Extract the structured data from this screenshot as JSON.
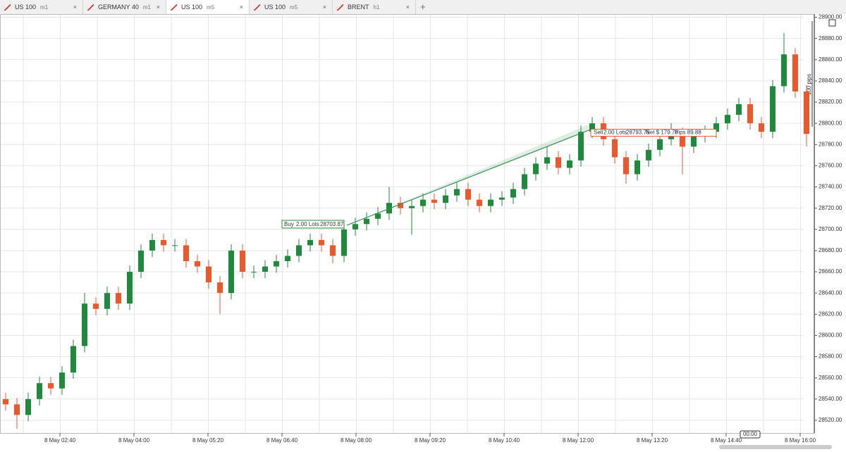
{
  "tabs": [
    {
      "symbol": "US 100",
      "timeframe": "m1"
    },
    {
      "symbol": "GERMANY 40",
      "timeframe": "m1"
    },
    {
      "symbol": "US 100",
      "timeframe": "m5"
    },
    {
      "symbol": "US 100",
      "timeframe": "m5"
    },
    {
      "symbol": "BRENT",
      "timeframe": "h1"
    }
  ],
  "chart_data": {
    "type": "candlestick",
    "up_color": "#1f8a3b",
    "down_color": "#e9592c",
    "open": [
      28540,
      28535,
      28525,
      28540,
      28555,
      28550,
      28565,
      28590,
      28630,
      28625,
      28640,
      28630,
      28660,
      28680,
      28690,
      28685,
      28685,
      28670,
      28665,
      28650,
      28640,
      28680,
      28660,
      28660,
      28665,
      28670,
      28675,
      28685,
      28690,
      28685,
      28675,
      28700,
      28705,
      28710,
      28715,
      28725,
      28720,
      28722,
      28728,
      28725,
      28732,
      28738,
      28728,
      28722,
      28728,
      28730,
      28738,
      28752,
      28762,
      28768,
      28758,
      28765,
      28792,
      28800,
      28785,
      28768,
      28752,
      28765,
      28775,
      28785,
      28790,
      28778,
      28788,
      28792,
      28800,
      28808,
      28818,
      28800,
      28792,
      28835,
      28865,
      28830
    ],
    "high": [
      28546,
      28541,
      28546,
      28561,
      28561,
      28571,
      28596,
      28640,
      28636,
      28646,
      28646,
      28666,
      28686,
      28696,
      28696,
      28691,
      28691,
      28676,
      28671,
      28656,
      28686,
      28686,
      28666,
      28671,
      28676,
      28681,
      28691,
      28696,
      28696,
      28691,
      28706,
      28711,
      28716,
      28721,
      28740,
      28731,
      28728,
      28734,
      28734,
      28738,
      28744,
      28744,
      28734,
      28734,
      28736,
      28744,
      28758,
      28768,
      28778,
      28774,
      28771,
      28798,
      28806,
      28806,
      28791,
      28774,
      28771,
      28781,
      28791,
      28800,
      28796,
      28794,
      28798,
      28806,
      28814,
      28824,
      28824,
      28806,
      28841,
      28885,
      28871,
      28836
    ],
    "low": [
      28529,
      28512,
      28519,
      28534,
      28544,
      28544,
      28559,
      28584,
      28619,
      28619,
      28624,
      28624,
      28654,
      28674,
      28679,
      28679,
      28664,
      28659,
      28644,
      28620,
      28634,
      28654,
      28654,
      28654,
      28659,
      28664,
      28669,
      28679,
      28679,
      28668,
      28669,
      28694,
      28699,
      28704,
      28709,
      28714,
      28695,
      28716,
      28719,
      28719,
      28726,
      28722,
      28716,
      28716,
      28722,
      28724,
      28732,
      28746,
      28756,
      28752,
      28752,
      28759,
      28786,
      28779,
      28762,
      28743,
      28746,
      28759,
      28769,
      28779,
      28752,
      28772,
      28782,
      28786,
      28794,
      28802,
      28794,
      28786,
      28786,
      28829,
      28824,
      28778
    ],
    "close": [
      28535,
      28525,
      28540,
      28555,
      28550,
      28565,
      28590,
      28630,
      28625,
      28640,
      28630,
      28660,
      28680,
      28690,
      28685,
      28685,
      28670,
      28665,
      28650,
      28640,
      28680,
      28660,
      28660,
      28665,
      28670,
      28675,
      28685,
      28690,
      28685,
      28675,
      28700,
      28705,
      28710,
      28715,
      28725,
      28720,
      28722,
      28728,
      28725,
      28732,
      28738,
      28728,
      28722,
      28728,
      28730,
      28738,
      28752,
      28762,
      28768,
      28758,
      28765,
      28792,
      28800,
      28785,
      28768,
      28752,
      28765,
      28775,
      28785,
      28790,
      28778,
      28788,
      28792,
      28800,
      28808,
      28818,
      28800,
      28792,
      28835,
      28865,
      28830,
      28790
    ],
    "ylim": [
      28508,
      28903
    ],
    "yticks": [
      {
        "value": 28520,
        "label": "28520.00"
      },
      {
        "value": 28540,
        "label": "28540.00"
      },
      {
        "value": 28560,
        "label": "28560.00"
      },
      {
        "value": 28580,
        "label": "28580.00"
      },
      {
        "value": 28600,
        "label": "28600.00"
      },
      {
        "value": 28620,
        "label": "28620.00"
      },
      {
        "value": 28640,
        "label": "28640.00"
      },
      {
        "value": 28660,
        "label": "28660.00"
      },
      {
        "value": 28680,
        "label": "28680.00"
      },
      {
        "value": 28700,
        "label": "28700.00"
      },
      {
        "value": 28720,
        "label": "28720.00"
      },
      {
        "value": 28740,
        "label": "28740.00"
      },
      {
        "value": 28760,
        "label": "28760.00"
      },
      {
        "value": 28780,
        "label": "28780.00"
      },
      {
        "value": 28800,
        "label": "28800.00"
      },
      {
        "value": 28820,
        "label": "28820.00"
      },
      {
        "value": 28840,
        "label": "28840.00"
      },
      {
        "value": 28860,
        "label": "28860.00"
      },
      {
        "value": 28880,
        "label": "28880.00"
      },
      {
        "value": 28900,
        "label": "28900.00"
      }
    ],
    "x_labels": [
      "8 May 02:40",
      "8 May 04:00",
      "8 May 05:20",
      "8 May 06:40",
      "8 May 08:00",
      "8 May 09:20",
      "8 May 10:40",
      "8 May 12:00",
      "8 May 13:20",
      "8 May 14:40",
      "8 May 16:00"
    ],
    "buy": {
      "side": "Buy",
      "lots": "2.00 Lots",
      "price": 28703.87,
      "price_label": "28703.87"
    },
    "sell": {
      "side": "Sell",
      "lots": "2.00 Lots",
      "price": 28793.75,
      "price_label": "28793.75",
      "net": "Net $ 179.76",
      "pips": "Pips 89.88"
    },
    "pips_label": "100 pips",
    "time_marker": "00:00"
  }
}
